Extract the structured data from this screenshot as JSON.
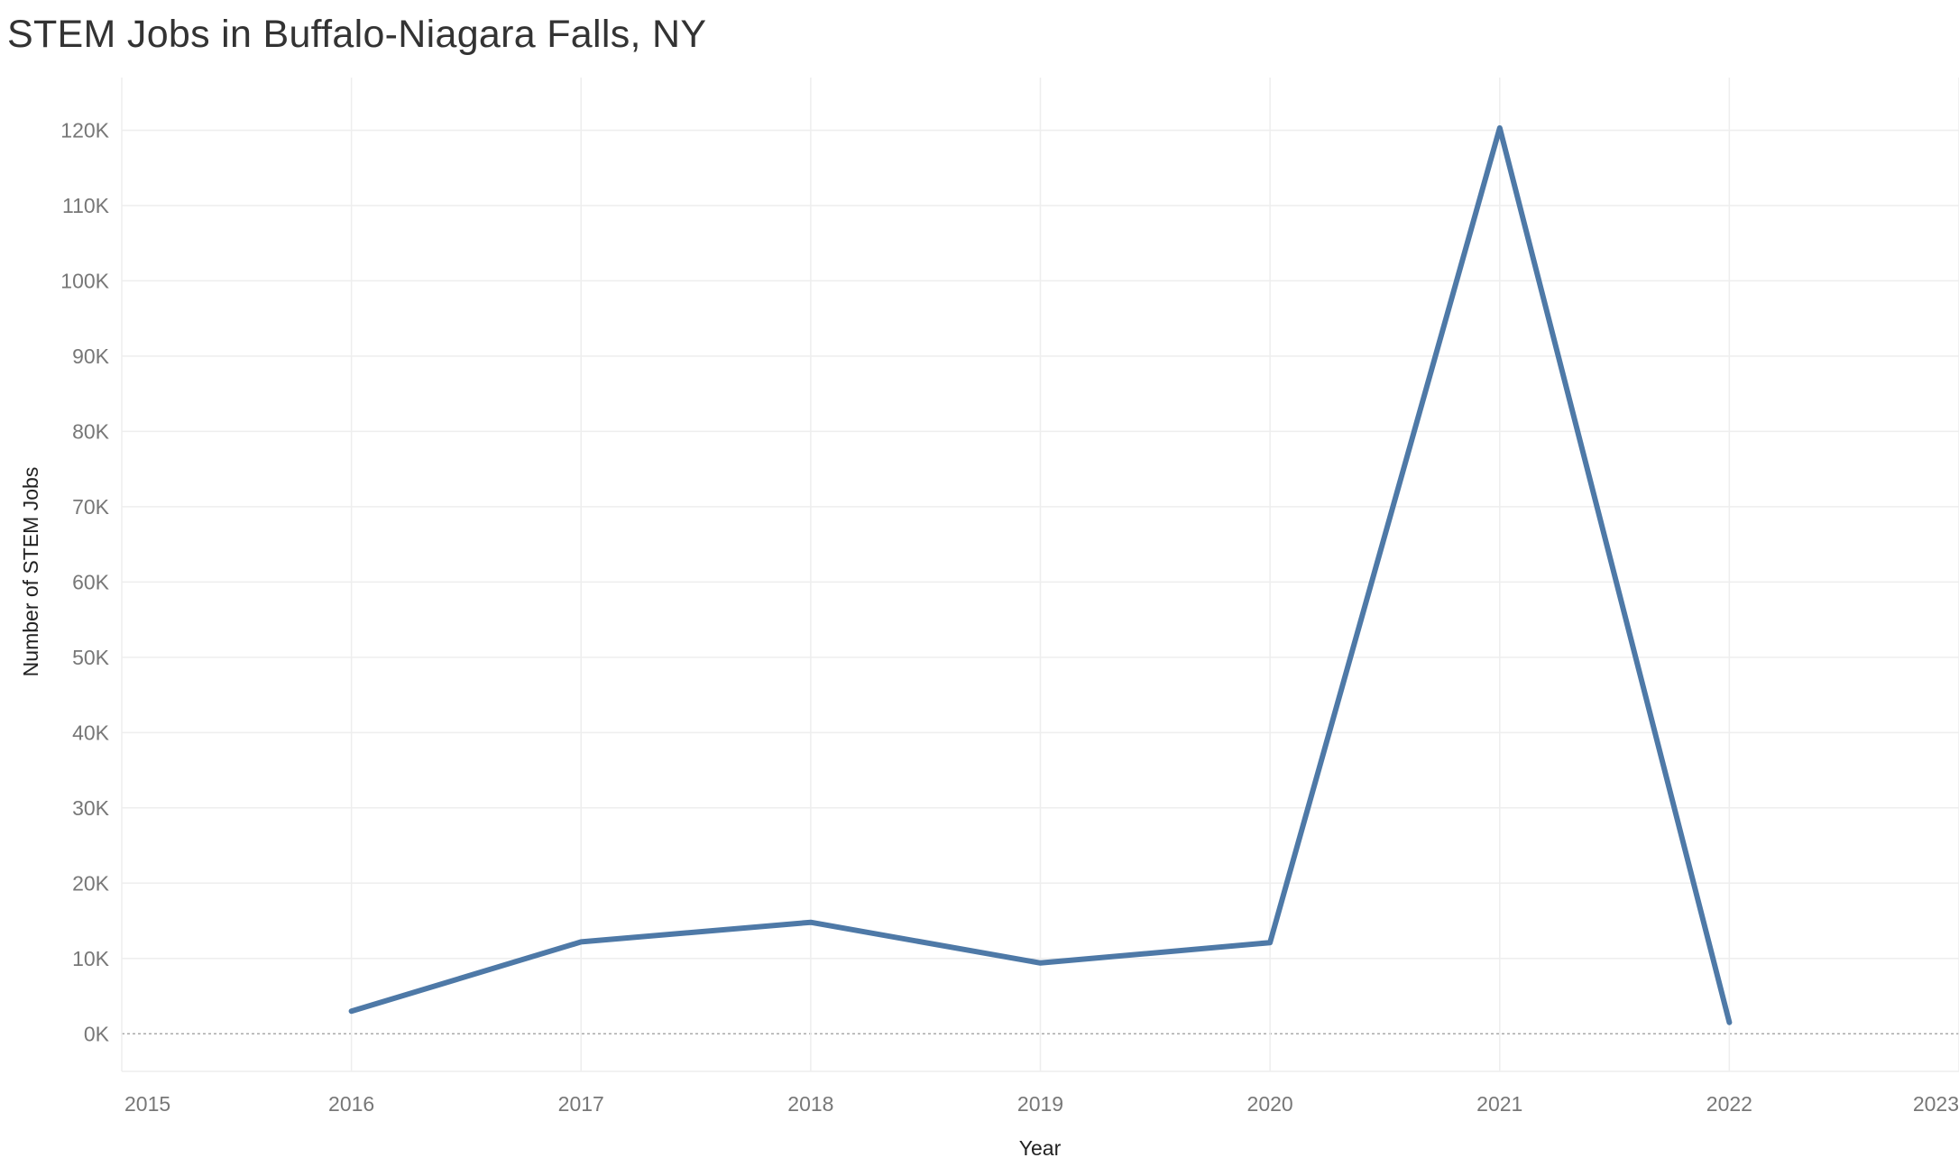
{
  "chart_data": {
    "type": "line",
    "title": "STEM Jobs in Buffalo-Niagara Falls, NY",
    "xlabel": "Year",
    "ylabel": "Number of STEM Jobs",
    "xlim": [
      2015,
      2023
    ],
    "ylim": [
      -5000,
      127000
    ],
    "x_ticks": [
      2015,
      2016,
      2017,
      2018,
      2019,
      2020,
      2021,
      2022,
      2023
    ],
    "y_ticks": [
      0,
      10000,
      20000,
      30000,
      40000,
      50000,
      60000,
      70000,
      80000,
      90000,
      100000,
      110000,
      120000
    ],
    "x_tick_labels": [
      "2015",
      "2016",
      "2017",
      "2018",
      "2019",
      "2020",
      "2021",
      "2022",
      "2023"
    ],
    "y_tick_labels": [
      "0K",
      "10K",
      "20K",
      "30K",
      "40K",
      "50K",
      "60K",
      "70K",
      "80K",
      "90K",
      "100K",
      "110K",
      "120K"
    ],
    "grid": true,
    "legend": "none",
    "series": [
      {
        "color": "#4e79a7",
        "x": [
          2016,
          2017,
          2018,
          2019,
          2020,
          2021,
          2022
        ],
        "values": [
          3000,
          12200,
          14800,
          9400,
          12100,
          120300,
          1500
        ]
      }
    ]
  }
}
